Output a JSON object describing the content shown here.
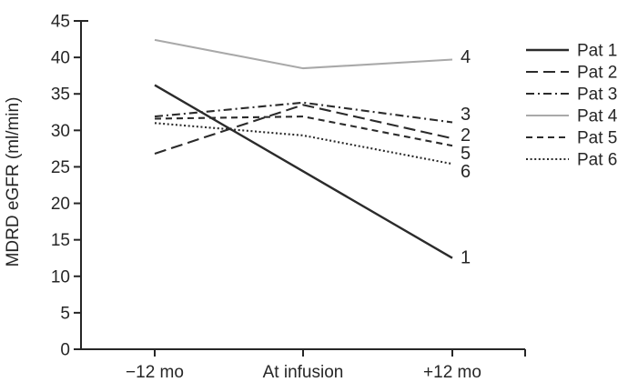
{
  "chart_data": {
    "type": "line",
    "title": "",
    "xlabel": "",
    "ylabel": "MDRD eGFR (ml/min)",
    "categories": [
      "−12 mo",
      "At infusion",
      "+12 mo"
    ],
    "series": [
      {
        "name": "Pat 1",
        "values": [
          36.2,
          24.4,
          12.5
        ],
        "line_style": "solid",
        "color": "#2b2b2b",
        "end_label": "1"
      },
      {
        "name": "Pat 2",
        "values": [
          26.8,
          33.5,
          28.9
        ],
        "line_style": "long-dash",
        "color": "#2b2b2b",
        "end_label": "2"
      },
      {
        "name": "Pat 3",
        "values": [
          31.9,
          33.8,
          31.1
        ],
        "line_style": "dash-dot",
        "color": "#2b2b2b",
        "end_label": "3"
      },
      {
        "name": "Pat 4",
        "values": [
          42.4,
          38.5,
          39.7
        ],
        "line_style": "solid",
        "color": "#a9a9a9",
        "end_label": "4"
      },
      {
        "name": "Pat 5",
        "values": [
          31.6,
          31.9,
          27.9
        ],
        "line_style": "dash",
        "color": "#2b2b2b",
        "end_label": "5"
      },
      {
        "name": "Pat 6",
        "values": [
          31.0,
          29.3,
          25.4
        ],
        "line_style": "dot",
        "color": "#2b2b2b",
        "end_label": "6"
      }
    ],
    "ylim": [
      0,
      45
    ],
    "yticks": [
      0,
      5,
      10,
      15,
      20,
      25,
      30,
      35,
      40,
      45
    ],
    "legend_position": "right",
    "legend_labels": [
      "Pat 1",
      "Pat 2",
      "Pat 3",
      "Pat 4",
      "Pat 5",
      "Pat 6"
    ],
    "grid": false,
    "axis_color": "#262626",
    "text_color": "#262626"
  }
}
